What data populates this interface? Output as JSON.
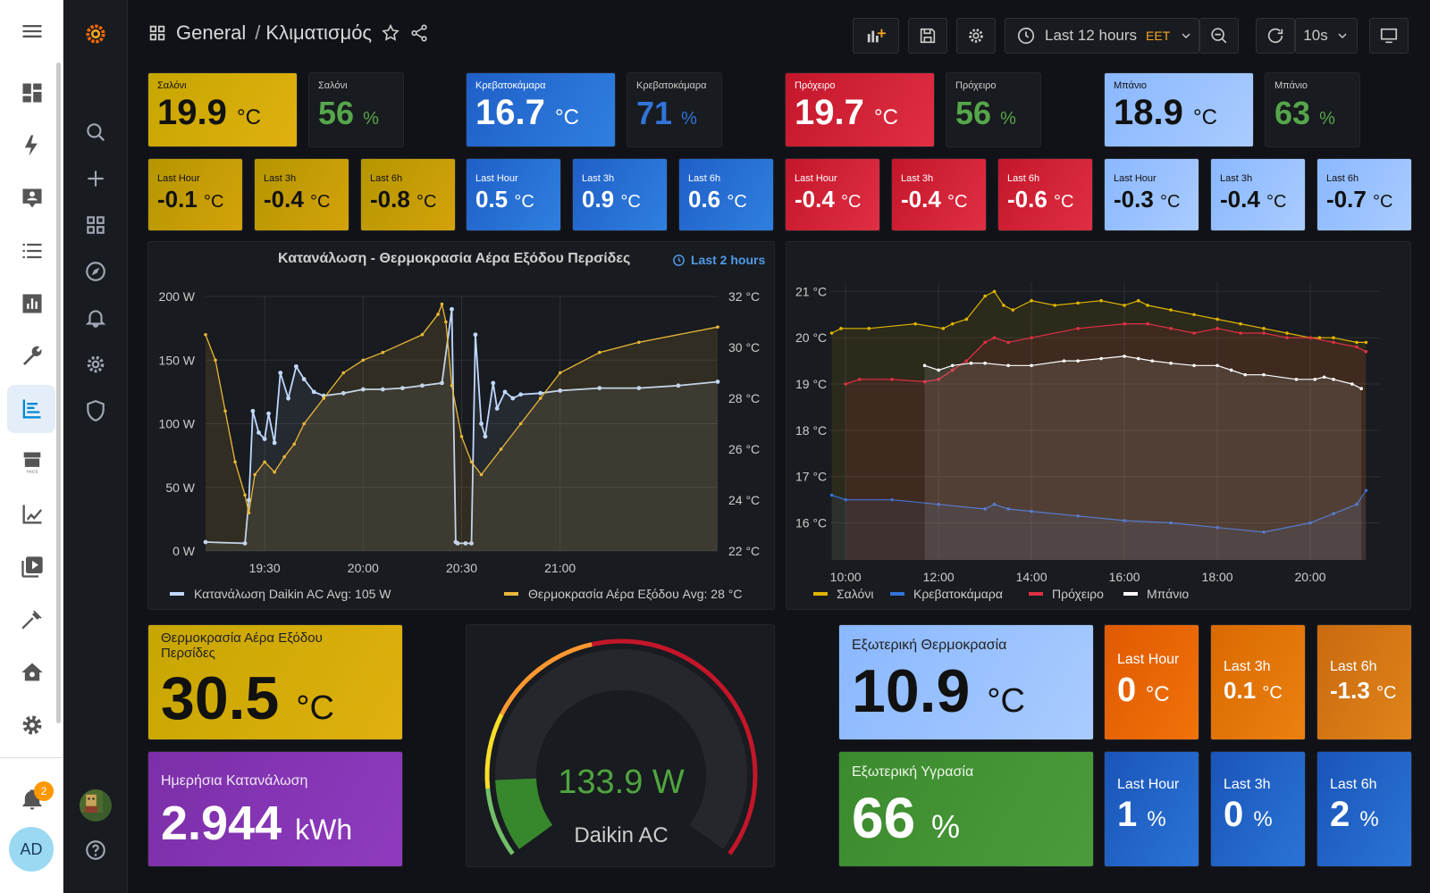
{
  "header": {
    "folder": "General",
    "separator": "/",
    "title": "Κλιματισμός",
    "time_range": "Last 12 hours",
    "timezone": "EET",
    "refresh": "10s"
  },
  "ha_sidebar": {
    "notifications_count": "2",
    "user_initials": "AD"
  },
  "icons": {
    "ha": [
      "menu-icon",
      "overview-icon",
      "energy-icon",
      "person-card-icon",
      "logbook-icon",
      "history-icon",
      "tools-icon",
      "grafana-icon",
      "hacs-icon",
      "chart-icon",
      "media-icon",
      "hammer-icon",
      "home-settings-icon",
      "settings-icon"
    ],
    "grafana": [
      "search-icon",
      "plus-icon",
      "dashboards-icon",
      "explore-icon",
      "alert-icon",
      "gear-icon",
      "shield-icon"
    ]
  },
  "rooms": [
    {
      "name": "Σαλόνι",
      "temp": "19.9",
      "unit": "°C",
      "hum": "56",
      "hum_unit": "%",
      "color": "#d4aa08",
      "hum_color": "#56a64b",
      "deltas": [
        {
          "label": "Last Hour",
          "value": "-0.1",
          "unit": "°C"
        },
        {
          "label": "Last 3h",
          "value": "-0.4",
          "unit": "°C"
        },
        {
          "label": "Last 6h",
          "value": "-0.8",
          "unit": "°C"
        }
      ]
    },
    {
      "name": "Κρεβατοκάμαρα",
      "temp": "16.7",
      "unit": "°C",
      "hum": "71",
      "hum_unit": "%",
      "color": "#2c6fd6",
      "hum_color": "#3274d9",
      "deltas": [
        {
          "label": "Last Hour",
          "value": "0.5",
          "unit": "°C"
        },
        {
          "label": "Last 3h",
          "value": "0.9",
          "unit": "°C"
        },
        {
          "label": "Last 6h",
          "value": "0.6",
          "unit": "°C"
        }
      ]
    },
    {
      "name": "Πρόχειρο",
      "temp": "19.7",
      "unit": "°C",
      "hum": "56",
      "hum_unit": "%",
      "color": "#d42036",
      "hum_color": "#56a64b",
      "deltas": [
        {
          "label": "Last Hour",
          "value": "-0.4",
          "unit": "°C"
        },
        {
          "label": "Last 3h",
          "value": "-0.4",
          "unit": "°C"
        },
        {
          "label": "Last 6h",
          "value": "-0.6",
          "unit": "°C"
        }
      ]
    },
    {
      "name": "Μπάνιο",
      "temp": "18.9",
      "unit": "°C",
      "hum": "63",
      "hum_unit": "%",
      "color": "#9bc3ff",
      "hum_color": "#56a64b",
      "deltas": [
        {
          "label": "Last Hour",
          "value": "-0.3",
          "unit": "°C"
        },
        {
          "label": "Last 3h",
          "value": "-0.4",
          "unit": "°C"
        },
        {
          "label": "Last 6h",
          "value": "-0.7",
          "unit": "°C"
        }
      ]
    }
  ],
  "chart1": {
    "title": "Κατανάλωση - Θερμοκρασία Αέρα Εξόδου Περσίδες",
    "range_label": "Last 2 hours"
  },
  "chart_data": [
    {
      "type": "line",
      "title": "Κατανάλωση - Θερμοκρασία Αέρα Εξόδου Περσίδες",
      "x_ticks": [
        "19:30",
        "20:00",
        "20:30",
        "21:00"
      ],
      "y_left": {
        "ticks": [
          "0 W",
          "50 W",
          "100 W",
          "150 W",
          "200 W"
        ],
        "ylim": [
          0,
          200
        ]
      },
      "y_right": {
        "ticks": [
          "22 °C",
          "24 °C",
          "26 °C",
          "28 °C",
          "30 °C",
          "32 °C"
        ],
        "ylim": [
          22,
          32
        ]
      },
      "xlim": [
        19.2,
        21.8
      ],
      "series": [
        {
          "name": "Κατανάλωση Daikin AC",
          "legend_stat": "Avg: 105 W",
          "color": "#c0d8ff",
          "axis": "left",
          "x": [
            19.2,
            19.4,
            19.42,
            19.44,
            19.47,
            19.5,
            19.52,
            19.55,
            19.58,
            19.62,
            19.66,
            19.7,
            19.75,
            19.8,
            19.9,
            20.0,
            20.1,
            20.2,
            20.3,
            20.4,
            20.45,
            20.47,
            20.48,
            20.52,
            20.55,
            20.57,
            20.6,
            20.62,
            20.66,
            20.68,
            20.72,
            20.76,
            20.8,
            20.9,
            21.0,
            21.2,
            21.4,
            21.6,
            21.8
          ],
          "y": [
            7,
            6,
            40,
            110,
            93,
            88,
            108,
            85,
            140,
            120,
            145,
            135,
            125,
            122,
            124,
            127,
            127,
            128,
            130,
            132,
            190,
            7,
            6,
            6,
            6,
            170,
            100,
            90,
            132,
            112,
            125,
            120,
            123,
            124,
            126,
            128,
            128,
            130,
            133
          ]
        },
        {
          "name": "Θερμοκρασία Αέρα Εξόδου",
          "legend_stat": "Avg: 28 °C",
          "color": "#eab839",
          "axis": "right",
          "x": [
            19.2,
            19.25,
            19.3,
            19.35,
            19.4,
            19.42,
            19.45,
            19.5,
            19.55,
            19.6,
            19.65,
            19.7,
            19.8,
            19.9,
            20.0,
            20.1,
            20.3,
            20.38,
            20.4,
            20.42,
            20.45,
            20.5,
            20.55,
            20.6,
            20.7,
            20.8,
            20.9,
            21.0,
            21.2,
            21.4,
            21.8
          ],
          "y": [
            30.5,
            29.5,
            27.5,
            25.5,
            24.2,
            23.5,
            25,
            25.5,
            25.1,
            25.7,
            26.2,
            27,
            28,
            29,
            29.5,
            29.8,
            30.5,
            31.3,
            31.7,
            31,
            28.5,
            26.5,
            25.5,
            25,
            26,
            27,
            28,
            29,
            29.8,
            30.2,
            30.8
          ]
        }
      ]
    },
    {
      "type": "line",
      "title": "",
      "x_ticks": [
        "10:00",
        "12:00",
        "14:00",
        "16:00",
        "18:00",
        "20:00"
      ],
      "y_ticks": [
        "16 °C",
        "17 °C",
        "18 °C",
        "19 °C",
        "20 °C",
        "21 °C"
      ],
      "ylim": [
        15.2,
        21.2
      ],
      "xlim": [
        9.65,
        21.5
      ],
      "series": [
        {
          "name": "Σαλόνι",
          "color": "#e0b400",
          "x": [
            9.7,
            9.9,
            10.5,
            11.5,
            12.1,
            12.3,
            12.6,
            13.0,
            13.2,
            13.4,
            13.6,
            14.0,
            14.5,
            15.0,
            15.5,
            16.0,
            16.3,
            16.5,
            17.0,
            17.5,
            18.0,
            18.5,
            19.0,
            19.5,
            20.0,
            20.2,
            20.5,
            21.0,
            21.2
          ],
          "y": [
            20.1,
            20.2,
            20.2,
            20.3,
            20.2,
            20.3,
            20.4,
            20.9,
            21.0,
            20.7,
            20.6,
            20.8,
            20.7,
            20.75,
            20.8,
            20.7,
            20.8,
            20.7,
            20.6,
            20.5,
            20.4,
            20.3,
            20.2,
            20.1,
            20.0,
            20.0,
            20.0,
            19.9,
            19.9
          ]
        },
        {
          "name": "Κρεβατοκάμαρα",
          "color": "#3274d9",
          "x": [
            9.7,
            10.0,
            11.0,
            12.0,
            13.0,
            13.2,
            13.5,
            14.0,
            15.0,
            16.0,
            17.0,
            18.0,
            19.0,
            20.0,
            20.5,
            21.0,
            21.2
          ],
          "y": [
            16.6,
            16.5,
            16.5,
            16.4,
            16.3,
            16.4,
            16.3,
            16.25,
            16.15,
            16.05,
            16.0,
            15.9,
            15.8,
            16.0,
            16.2,
            16.4,
            16.7
          ]
        },
        {
          "name": "Πρόχειρο",
          "color": "#e02f44",
          "x": [
            10.0,
            10.3,
            11.0,
            11.7,
            12.0,
            12.3,
            12.6,
            13.0,
            13.2,
            13.5,
            14.0,
            15.0,
            16.0,
            16.5,
            17.0,
            17.5,
            18.0,
            18.5,
            19.0,
            19.5,
            20.0,
            20.5,
            21.0,
            21.2
          ],
          "y": [
            19.0,
            19.1,
            19.1,
            19.05,
            19.1,
            19.3,
            19.5,
            19.9,
            20.0,
            19.9,
            20.0,
            20.2,
            20.3,
            20.3,
            20.2,
            20.1,
            20.2,
            20.1,
            20.1,
            20.0,
            20.0,
            19.9,
            19.8,
            19.7
          ]
        },
        {
          "name": "Μπάνιο",
          "color": "#ffffff",
          "x": [
            11.7,
            12.0,
            12.3,
            12.7,
            13.0,
            13.5,
            14.0,
            14.7,
            15.0,
            15.5,
            16.0,
            16.3,
            16.6,
            17.0,
            17.5,
            18.0,
            18.3,
            18.6,
            19.0,
            19.7,
            20.1,
            20.3,
            20.5,
            20.9,
            21.1
          ],
          "y": [
            19.4,
            19.3,
            19.4,
            19.45,
            19.45,
            19.4,
            19.4,
            19.5,
            19.5,
            19.55,
            19.6,
            19.55,
            19.5,
            19.45,
            19.4,
            19.4,
            19.3,
            19.2,
            19.2,
            19.1,
            19.1,
            19.15,
            19.1,
            19.0,
            18.9
          ]
        }
      ]
    }
  ],
  "bottom_left": {
    "outlet_title": "Θερμοκρασία Αέρα Εξόδου Περσίδες",
    "outlet_value": "30.5",
    "outlet_unit": "°C",
    "daily_title": "Ημερήσια Κατανάλωση",
    "daily_value": "2.944",
    "daily_unit": "kWh"
  },
  "gauge": {
    "value": "133.9 W",
    "label": "Daikin AC",
    "value_num": 133.9,
    "min": 0,
    "max": 1000
  },
  "outdoor": {
    "temp_title": "Εξωτερική Θερμοκρασία",
    "temp_value": "10.9",
    "temp_unit": "°C",
    "temp_deltas": [
      {
        "label": "Last Hour",
        "value": "0",
        "unit": "°C"
      },
      {
        "label": "Last 3h",
        "value": "0.1",
        "unit": "°C"
      },
      {
        "label": "Last 6h",
        "value": "-1.3",
        "unit": "°C"
      }
    ],
    "hum_title": "Εξωτερική Υγρασία",
    "hum_value": "66",
    "hum_unit": "%",
    "hum_deltas": [
      {
        "label": "Last Hour",
        "value": "1",
        "unit": "%"
      },
      {
        "label": "Last 3h",
        "value": "0",
        "unit": "%"
      },
      {
        "label": "Last 6h",
        "value": "2",
        "unit": "%"
      }
    ]
  }
}
